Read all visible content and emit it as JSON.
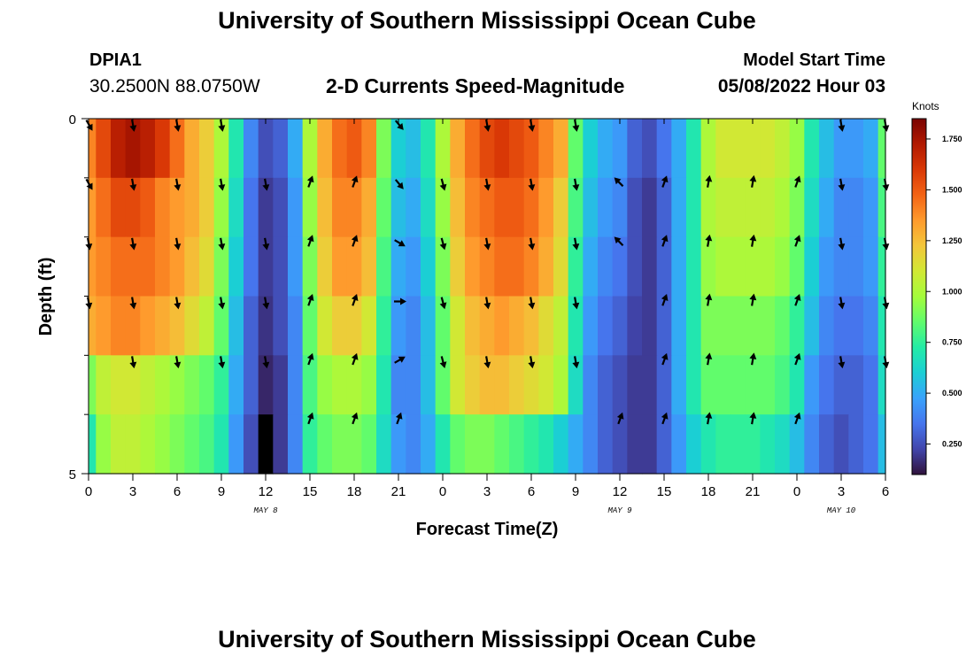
{
  "header": {
    "title": "University of Southern Mississippi Ocean Cube",
    "station_id": "DPIA1",
    "station_coords": "30.2500N  88.0750W",
    "subtitle": "2-D Currents Speed-Magnitude",
    "model_label": "Model Start Time",
    "model_time": "05/08/2022 Hour 03"
  },
  "footer": {
    "title": "University of Southern Mississippi Ocean Cube"
  },
  "chart_data": {
    "type": "heatmap",
    "title": "2-D Currents Speed-Magnitude",
    "xlabel": "Forecast Time(Z)",
    "ylabel": "Depth (ft)",
    "x_tick_labels": [
      "0",
      "3",
      "6",
      "9",
      "12",
      "15",
      "18",
      "21",
      "0",
      "3",
      "6",
      "9",
      "12",
      "15",
      "18",
      "21",
      "0",
      "3",
      "6"
    ],
    "y_tick_labels": [
      "0",
      "5"
    ],
    "date_labels": [
      {
        "label": "MAY 8",
        "tick_index": 4
      },
      {
        "label": "MAY 9",
        "tick_index": 12
      },
      {
        "label": "MAY 10",
        "tick_index": 17
      }
    ],
    "ylim": [
      0,
      5
    ],
    "colorbar": {
      "unit": "Knots",
      "min": 0.1,
      "max": 1.85,
      "tick_values": [
        0.25,
        0.5,
        0.75,
        1.0,
        1.25,
        1.5,
        1.75
      ],
      "tick_labels": [
        "0.250",
        "0.500",
        "0.750",
        "1.000",
        "1.250",
        "1.500",
        "1.750"
      ],
      "colors": [
        "#30123b",
        "#4145ab",
        "#4675ed",
        "#39a2fc",
        "#1bcfd4",
        "#24eca6",
        "#61fc6c",
        "#a4fc3b",
        "#d1e834",
        "#f3c63a",
        "#fe9b2d",
        "#f36315",
        "#d93806",
        "#b11901",
        "#7a0402"
      ]
    },
    "hours": [
      0,
      1,
      2,
      3,
      4,
      5,
      6,
      7,
      8,
      9,
      10,
      11,
      12,
      13,
      14,
      15,
      16,
      17,
      18,
      19,
      20,
      21,
      22,
      23,
      24,
      25,
      26,
      27,
      28,
      29,
      30,
      31,
      32,
      33,
      34,
      35,
      36,
      37,
      38,
      39,
      40,
      41,
      42,
      43,
      44,
      45,
      46,
      47,
      48,
      49,
      50,
      51,
      52,
      53,
      54
    ],
    "depth_levels": [
      "0.0",
      "1.0",
      "2.0",
      "3.0",
      "4.0",
      "5.0"
    ],
    "speed_knots": [
      [
        1.4,
        1.55,
        1.7,
        1.75,
        1.7,
        1.6,
        1.45,
        1.3,
        1.2,
        1.0,
        0.7,
        0.4,
        0.25,
        0.3,
        0.5,
        1.0,
        1.3,
        1.45,
        1.5,
        1.4,
        0.9,
        0.6,
        0.55,
        0.7,
        1.0,
        1.3,
        1.45,
        1.55,
        1.6,
        1.55,
        1.5,
        1.4,
        1.3,
        0.85,
        0.6,
        0.5,
        0.45,
        0.3,
        0.25,
        0.35,
        0.5,
        0.7,
        1.0,
        1.1,
        1.1,
        1.1,
        1.1,
        1.05,
        0.95,
        0.7,
        0.55,
        0.45,
        0.45,
        0.5,
        0.85
      ],
      [
        1.35,
        1.45,
        1.55,
        1.55,
        1.5,
        1.4,
        1.35,
        1.3,
        1.2,
        0.95,
        0.65,
        0.35,
        0.2,
        0.25,
        0.45,
        0.95,
        1.25,
        1.4,
        1.4,
        1.3,
        0.85,
        0.55,
        0.5,
        0.65,
        0.95,
        1.25,
        1.4,
        1.45,
        1.5,
        1.5,
        1.45,
        1.35,
        1.2,
        0.8,
        0.55,
        0.45,
        0.4,
        0.25,
        0.2,
        0.3,
        0.5,
        0.7,
        1.0,
        1.05,
        1.05,
        1.05,
        1.05,
        1.0,
        0.9,
        0.65,
        0.5,
        0.4,
        0.4,
        0.45,
        0.8
      ],
      [
        1.35,
        1.4,
        1.45,
        1.45,
        1.45,
        1.4,
        1.35,
        1.25,
        1.15,
        0.9,
        0.6,
        0.35,
        0.2,
        0.25,
        0.45,
        0.9,
        1.2,
        1.35,
        1.35,
        1.25,
        0.8,
        0.5,
        0.45,
        0.6,
        0.9,
        1.2,
        1.35,
        1.4,
        1.45,
        1.45,
        1.4,
        1.3,
        1.15,
        0.75,
        0.5,
        0.4,
        0.35,
        0.25,
        0.2,
        0.3,
        0.5,
        0.7,
        0.95,
        1.0,
        1.0,
        1.0,
        1.0,
        0.95,
        0.85,
        0.6,
        0.45,
        0.4,
        0.4,
        0.45,
        0.75
      ],
      [
        1.3,
        1.35,
        1.4,
        1.4,
        1.35,
        1.3,
        1.25,
        1.15,
        1.05,
        0.85,
        0.55,
        0.3,
        0.18,
        0.25,
        0.4,
        0.85,
        1.1,
        1.2,
        1.2,
        1.1,
        0.75,
        0.45,
        0.4,
        0.55,
        0.85,
        1.1,
        1.25,
        1.3,
        1.35,
        1.3,
        1.25,
        1.15,
        1.05,
        0.7,
        0.45,
        0.35,
        0.3,
        0.22,
        0.2,
        0.3,
        0.5,
        0.7,
        0.9,
        0.9,
        0.9,
        0.9,
        0.9,
        0.85,
        0.75,
        0.55,
        0.4,
        0.35,
        0.35,
        0.4,
        0.7
      ],
      [
        0.9,
        1.05,
        1.1,
        1.1,
        1.05,
        1.0,
        0.95,
        0.9,
        0.85,
        0.75,
        0.5,
        0.3,
        0.15,
        0.2,
        0.4,
        0.8,
        0.95,
        1.0,
        1.0,
        0.95,
        0.7,
        0.4,
        0.4,
        0.55,
        0.85,
        1.1,
        1.2,
        1.25,
        1.25,
        1.2,
        1.15,
        1.1,
        1.0,
        0.65,
        0.4,
        0.3,
        0.25,
        0.2,
        0.2,
        0.3,
        0.5,
        0.7,
        0.85,
        0.85,
        0.85,
        0.85,
        0.85,
        0.8,
        0.7,
        0.45,
        0.35,
        0.3,
        0.3,
        0.35,
        0.65
      ],
      [
        0.7,
        0.95,
        1.05,
        1.05,
        1.0,
        0.95,
        0.9,
        0.85,
        0.8,
        0.7,
        0.45,
        0.25,
        0.05,
        0.2,
        0.4,
        0.75,
        0.85,
        0.9,
        0.9,
        0.85,
        0.65,
        0.45,
        0.4,
        0.5,
        0.7,
        0.85,
        0.9,
        0.9,
        0.85,
        0.8,
        0.75,
        0.7,
        0.6,
        0.5,
        0.4,
        0.3,
        0.25,
        0.2,
        0.2,
        0.3,
        0.45,
        0.6,
        0.7,
        0.75,
        0.75,
        0.75,
        0.7,
        0.65,
        0.55,
        0.4,
        0.3,
        0.25,
        0.3,
        0.35,
        0.55
      ]
    ],
    "arrow_hours": [
      0,
      3,
      6,
      9,
      12,
      15,
      18,
      21,
      24,
      27,
      30,
      33,
      36,
      39,
      42,
      45,
      48,
      51,
      54
    ],
    "arrow_angles_deg": [
      [
        150,
        170,
        170,
        170,
        null,
        null,
        null,
        140,
        null,
        170,
        170,
        170,
        null,
        null,
        null,
        null,
        null,
        170,
        170
      ],
      [
        150,
        170,
        170,
        170,
        170,
        20,
        20,
        140,
        165,
        170,
        170,
        170,
        315,
        20,
        10,
        10,
        20,
        170,
        170
      ],
      [
        170,
        170,
        170,
        170,
        170,
        20,
        20,
        120,
        165,
        170,
        170,
        170,
        315,
        20,
        10,
        10,
        20,
        170,
        170
      ],
      [
        170,
        170,
        170,
        170,
        170,
        20,
        20,
        90,
        165,
        170,
        170,
        170,
        null,
        20,
        10,
        10,
        20,
        170,
        170
      ],
      [
        null,
        170,
        170,
        170,
        170,
        20,
        20,
        60,
        165,
        170,
        170,
        170,
        null,
        20,
        10,
        10,
        20,
        170,
        170
      ],
      [
        null,
        null,
        null,
        null,
        null,
        20,
        20,
        20,
        null,
        null,
        null,
        null,
        20,
        20,
        10,
        10,
        20,
        null,
        null
      ]
    ]
  }
}
